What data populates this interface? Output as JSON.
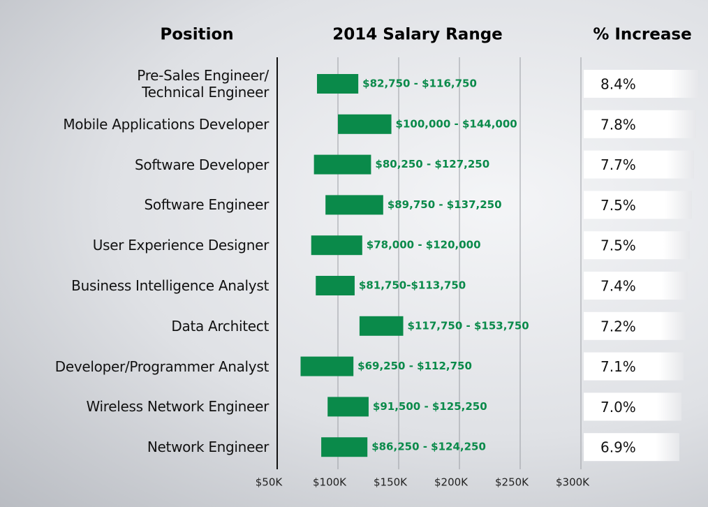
{
  "chart_data": {
    "type": "range_bar",
    "headers": [
      "Position",
      "2014 Salary Range",
      "% Increase"
    ],
    "categories": [
      "Pre-Sales Engineer/\nTechnical Engineer",
      "Mobile Applications Developer",
      "Software Developer",
      "Software Engineer",
      "User Experience Designer",
      "Business Intelligence Analyst",
      "Data Architect",
      "Developer/Programmer Analyst",
      "Wireless Network Engineer",
      "Network Engineer"
    ],
    "low": [
      82750,
      100000,
      80250,
      89750,
      78000,
      81750,
      117750,
      69250,
      91500,
      86250
    ],
    "high": [
      116750,
      144000,
      127250,
      137250,
      120000,
      113750,
      153750,
      112750,
      125250,
      124250
    ],
    "value_labels": [
      "$82,750 - $116,750",
      "$100,000 - $144,000",
      "$80,250 - $127,250",
      "$89,750 - $137,250",
      "$78,000 - $120,000",
      "$81,750-$113,750",
      "$117,750 - $153,750",
      "$69,250 - $112,750",
      "$91,500 - $125,250",
      "$86,250 - $124,250"
    ],
    "color": "#0a8a4a",
    "increase": [
      8.4,
      7.8,
      7.7,
      7.5,
      7.5,
      7.4,
      7.2,
      7.1,
      7.0,
      6.9
    ],
    "increase_labels": [
      "8.4%",
      "7.8%",
      "7.7%",
      "7.5%",
      "7.5%",
      "7.4%",
      "7.2%",
      "7.1%",
      "7.0%",
      "6.9%"
    ],
    "xlim": [
      50000,
      300000
    ],
    "xticks": [
      {
        "value": 50000,
        "label": "$50K"
      },
      {
        "value": 100000,
        "label": "$100K"
      },
      {
        "value": 150000,
        "label": "$150K"
      },
      {
        "value": 200000,
        "label": "$200K"
      },
      {
        "value": 250000,
        "label": "$250K"
      },
      {
        "value": 300000,
        "label": "$300K"
      }
    ],
    "grid": true
  }
}
